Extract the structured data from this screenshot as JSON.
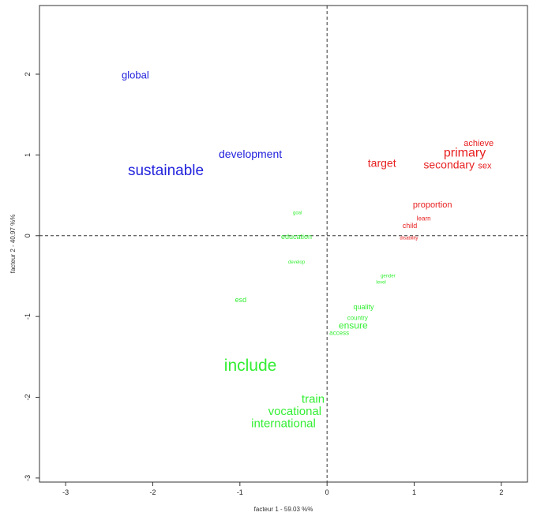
{
  "chart_data": {
    "type": "scatter",
    "title": "",
    "xlabel": "facteur  1  - 59.03 %%",
    "ylabel": "facteur  2  - 40.97 %%",
    "xlim": [
      -3.3,
      2.3
    ],
    "ylim": [
      -3.05,
      2.85
    ],
    "x_ticks": [
      -3,
      -2,
      -1,
      0,
      1,
      2
    ],
    "y_ticks": [
      -3,
      -2,
      -1,
      0,
      1,
      2
    ],
    "reference_lines": {
      "x": 0,
      "y": 0,
      "style": "dashed"
    },
    "grid": false,
    "colors": {
      "cluster_1": "#2222dd",
      "cluster_2": "#e82020",
      "cluster_3": "#33ee33"
    },
    "series": [
      {
        "color_key": "cluster_1",
        "points": [
          {
            "label": "global",
            "x": -2.2,
            "y": 1.98,
            "size": 13
          },
          {
            "label": "development",
            "x": -0.88,
            "y": 1.0,
            "size": 14
          },
          {
            "label": "sustainable",
            "x": -1.85,
            "y": 0.8,
            "size": 19
          }
        ]
      },
      {
        "color_key": "cluster_2",
        "points": [
          {
            "label": "achieve",
            "x": 1.74,
            "y": 1.14,
            "size": 11
          },
          {
            "label": "primary",
            "x": 1.58,
            "y": 1.02,
            "size": 16
          },
          {
            "label": "target",
            "x": 0.63,
            "y": 0.89,
            "size": 14
          },
          {
            "label": "secondary",
            "x": 1.4,
            "y": 0.87,
            "size": 14
          },
          {
            "label": "sex",
            "x": 1.81,
            "y": 0.86,
            "size": 11
          },
          {
            "label": "proportion",
            "x": 1.21,
            "y": 0.38,
            "size": 11
          },
          {
            "label": "learn",
            "x": 1.11,
            "y": 0.21,
            "size": 8
          },
          {
            "label": "child",
            "x": 0.95,
            "y": 0.12,
            "size": 9
          },
          {
            "label": "disability",
            "x": 0.94,
            "y": -0.03,
            "size": 6
          }
        ]
      },
      {
        "color_key": "cluster_3",
        "points": [
          {
            "label": "goal",
            "x": -0.34,
            "y": 0.28,
            "size": 6
          },
          {
            "label": "education",
            "x": -0.35,
            "y": -0.02,
            "size": 9
          },
          {
            "label": "develop",
            "x": -0.35,
            "y": -0.33,
            "size": 6
          },
          {
            "label": "gender",
            "x": 0.7,
            "y": -0.5,
            "size": 6
          },
          {
            "label": "level",
            "x": 0.62,
            "y": -0.58,
            "size": 6
          },
          {
            "label": "esd",
            "x": -0.99,
            "y": -0.8,
            "size": 9
          },
          {
            "label": "quality",
            "x": 0.42,
            "y": -0.89,
            "size": 9
          },
          {
            "label": "country",
            "x": 0.35,
            "y": -1.02,
            "size": 8
          },
          {
            "label": "ensure",
            "x": 0.3,
            "y": -1.12,
            "size": 12
          },
          {
            "label": "access",
            "x": 0.14,
            "y": -1.21,
            "size": 8
          },
          {
            "label": "include",
            "x": -0.88,
            "y": -1.62,
            "size": 21
          },
          {
            "label": "train",
            "x": -0.16,
            "y": -2.03,
            "size": 15
          },
          {
            "label": "vocational",
            "x": -0.37,
            "y": -2.18,
            "size": 15
          },
          {
            "label": "international",
            "x": -0.5,
            "y": -2.33,
            "size": 15
          }
        ]
      }
    ]
  }
}
